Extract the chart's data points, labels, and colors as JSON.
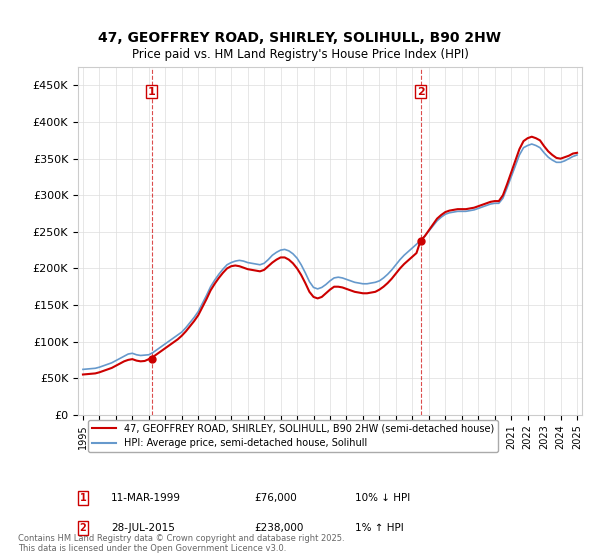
{
  "title_line1": "47, GEOFFREY ROAD, SHIRLEY, SOLIHULL, B90 2HW",
  "title_line2": "Price paid vs. HM Land Registry's House Price Index (HPI)",
  "ylabel": "",
  "purchase1_date": "1999-03-11",
  "purchase1_price": 76000,
  "purchase1_label": "1",
  "purchase2_date": "2015-07-28",
  "purchase2_price": 238000,
  "purchase2_label": "2",
  "legend_property": "47, GEOFFREY ROAD, SHIRLEY, SOLIHULL, B90 2HW (semi-detached house)",
  "legend_hpi": "HPI: Average price, semi-detached house, Solihull",
  "annotation1": "1    11-MAR-1999          £76,000          10% ↓ HPI",
  "annotation2": "2    28-JUL-2015          £238,000        1% ↑ HPI",
  "footer": "Contains HM Land Registry data © Crown copyright and database right 2025.\nThis data is licensed under the Open Government Licence v3.0.",
  "property_color": "#cc0000",
  "hpi_color": "#6699cc",
  "vline_color": "#cc0000",
  "grid_color": "#dddddd",
  "background_color": "#ffffff",
  "ylim": [
    0,
    475000
  ],
  "yticks": [
    0,
    50000,
    100000,
    150000,
    200000,
    250000,
    300000,
    350000,
    400000,
    450000
  ],
  "ytick_labels": [
    "£0",
    "£50K",
    "£100K",
    "£150K",
    "£200K",
    "£250K",
    "£300K",
    "£350K",
    "£400K",
    "£450K"
  ],
  "hpi_years": [
    1995.0,
    1995.25,
    1995.5,
    1995.75,
    1996.0,
    1996.25,
    1996.5,
    1996.75,
    1997.0,
    1997.25,
    1997.5,
    1997.75,
    1998.0,
    1998.25,
    1998.5,
    1998.75,
    1999.0,
    1999.25,
    1999.5,
    1999.75,
    2000.0,
    2000.25,
    2000.5,
    2000.75,
    2001.0,
    2001.25,
    2001.5,
    2001.75,
    2002.0,
    2002.25,
    2002.5,
    2002.75,
    2003.0,
    2003.25,
    2003.5,
    2003.75,
    2004.0,
    2004.25,
    2004.5,
    2004.75,
    2005.0,
    2005.25,
    2005.5,
    2005.75,
    2006.0,
    2006.25,
    2006.5,
    2006.75,
    2007.0,
    2007.25,
    2007.5,
    2007.75,
    2008.0,
    2008.25,
    2008.5,
    2008.75,
    2009.0,
    2009.25,
    2009.5,
    2009.75,
    2010.0,
    2010.25,
    2010.5,
    2010.75,
    2011.0,
    2011.25,
    2011.5,
    2011.75,
    2012.0,
    2012.25,
    2012.5,
    2012.75,
    2013.0,
    2013.25,
    2013.5,
    2013.75,
    2014.0,
    2014.25,
    2014.5,
    2014.75,
    2015.0,
    2015.25,
    2015.5,
    2015.75,
    2016.0,
    2016.25,
    2016.5,
    2016.75,
    2017.0,
    2017.25,
    2017.5,
    2017.75,
    2018.0,
    2018.25,
    2018.5,
    2018.75,
    2019.0,
    2019.25,
    2019.5,
    2019.75,
    2020.0,
    2020.25,
    2020.5,
    2020.75,
    2021.0,
    2021.25,
    2021.5,
    2021.75,
    2022.0,
    2022.25,
    2022.5,
    2022.75,
    2023.0,
    2023.25,
    2023.5,
    2023.75,
    2024.0,
    2024.25,
    2024.5,
    2024.75,
    2025.0
  ],
  "hpi_values": [
    62000,
    62500,
    63000,
    63500,
    65000,
    67000,
    69000,
    71000,
    74000,
    77000,
    80000,
    83000,
    84000,
    82000,
    81000,
    81500,
    82000,
    85000,
    89000,
    93000,
    97000,
    101000,
    105000,
    109000,
    113000,
    119000,
    126000,
    133000,
    141000,
    152000,
    163000,
    175000,
    184000,
    192000,
    199000,
    205000,
    208000,
    210000,
    211000,
    210000,
    208000,
    207000,
    206000,
    205000,
    207000,
    212000,
    218000,
    222000,
    225000,
    226000,
    224000,
    220000,
    214000,
    205000,
    194000,
    182000,
    174000,
    172000,
    174000,
    178000,
    183000,
    187000,
    188000,
    187000,
    185000,
    183000,
    181000,
    180000,
    179000,
    179000,
    180000,
    181000,
    183000,
    187000,
    192000,
    198000,
    205000,
    212000,
    218000,
    223000,
    228000,
    233000,
    238000,
    244000,
    251000,
    258000,
    265000,
    270000,
    274000,
    276000,
    277000,
    278000,
    278000,
    278000,
    279000,
    280000,
    282000,
    284000,
    286000,
    288000,
    289000,
    289000,
    296000,
    310000,
    325000,
    340000,
    355000,
    365000,
    368000,
    370000,
    368000,
    365000,
    358000,
    352000,
    348000,
    345000,
    345000,
    347000,
    350000,
    353000,
    355000
  ],
  "prop_years": [
    1995.0,
    1995.25,
    1995.5,
    1995.75,
    1996.0,
    1996.25,
    1996.5,
    1996.75,
    1997.0,
    1997.25,
    1997.5,
    1997.75,
    1998.0,
    1998.25,
    1998.5,
    1998.75,
    1999.0,
    1999.25,
    1999.5,
    1999.75,
    2000.0,
    2000.25,
    2000.5,
    2000.75,
    2001.0,
    2001.25,
    2001.5,
    2001.75,
    2002.0,
    2002.25,
    2002.5,
    2002.75,
    2003.0,
    2003.25,
    2003.5,
    2003.75,
    2004.0,
    2004.25,
    2004.5,
    2004.75,
    2005.0,
    2005.25,
    2005.5,
    2005.75,
    2006.0,
    2006.25,
    2006.5,
    2006.75,
    2007.0,
    2007.25,
    2007.5,
    2007.75,
    2008.0,
    2008.25,
    2008.5,
    2008.75,
    2009.0,
    2009.25,
    2009.5,
    2009.75,
    2010.0,
    2010.25,
    2010.5,
    2010.75,
    2011.0,
    2011.25,
    2011.5,
    2011.75,
    2012.0,
    2012.25,
    2012.5,
    2012.75,
    2013.0,
    2013.25,
    2013.5,
    2013.75,
    2014.0,
    2014.25,
    2014.5,
    2014.75,
    2015.0,
    2015.25,
    2015.5,
    2015.75,
    2016.0,
    2016.25,
    2016.5,
    2016.75,
    2017.0,
    2017.25,
    2017.5,
    2017.75,
    2018.0,
    2018.25,
    2018.5,
    2018.75,
    2019.0,
    2019.25,
    2019.5,
    2019.75,
    2020.0,
    2020.25,
    2020.5,
    2020.75,
    2021.0,
    2021.25,
    2021.5,
    2021.75,
    2022.0,
    2022.25,
    2022.5,
    2022.75,
    2023.0,
    2023.25,
    2023.5,
    2023.75,
    2024.0,
    2024.25,
    2024.5,
    2024.75,
    2025.0
  ],
  "prop_values": [
    55000,
    55500,
    56000,
    56500,
    58000,
    60000,
    62000,
    64000,
    67000,
    70000,
    73000,
    75000,
    76000,
    74000,
    73000,
    73500,
    76000,
    79000,
    83000,
    87000,
    91000,
    95000,
    99000,
    103000,
    108000,
    114000,
    121000,
    128000,
    136000,
    147000,
    158000,
    170000,
    179000,
    187000,
    194000,
    200000,
    203000,
    204000,
    203000,
    201000,
    199000,
    198000,
    197000,
    196000,
    198000,
    203000,
    208000,
    212000,
    215000,
    215000,
    212000,
    207000,
    200000,
    191000,
    180000,
    168000,
    161000,
    159000,
    161000,
    166000,
    171000,
    175000,
    175000,
    174000,
    172000,
    170000,
    168000,
    167000,
    166000,
    166000,
    167000,
    168000,
    171000,
    175000,
    180000,
    186000,
    193000,
    200000,
    206000,
    211000,
    216000,
    221000,
    238000,
    244000,
    252000,
    260000,
    268000,
    273000,
    277000,
    279000,
    280000,
    281000,
    281000,
    281000,
    282000,
    283000,
    285000,
    287000,
    289000,
    291000,
    292000,
    292000,
    300000,
    315000,
    331000,
    347000,
    363000,
    374000,
    378000,
    380000,
    378000,
    375000,
    367000,
    360000,
    355000,
    351000,
    350000,
    352000,
    354000,
    357000,
    358000
  ],
  "xtick_years": [
    1995,
    1996,
    1997,
    1998,
    1999,
    2000,
    2001,
    2002,
    2003,
    2004,
    2005,
    2006,
    2007,
    2008,
    2009,
    2010,
    2011,
    2012,
    2013,
    2014,
    2015,
    2016,
    2017,
    2018,
    2019,
    2020,
    2021,
    2022,
    2023,
    2024,
    2025
  ]
}
